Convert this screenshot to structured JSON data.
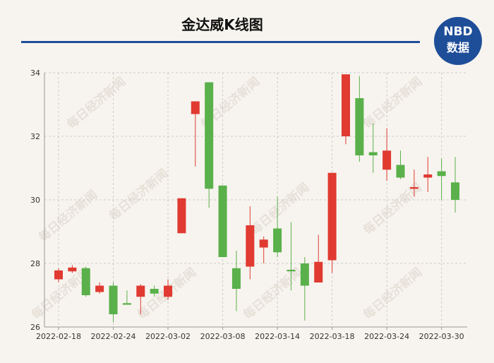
{
  "chart_data": {
    "type": "candlestick",
    "title": "金达威K线图",
    "logo": [
      "NBD",
      "数据"
    ],
    "watermark": "每日经济新闻",
    "categories": [
      "2022-02-18",
      null,
      null,
      null,
      "2022-02-24",
      null,
      null,
      null,
      "2022-03-02",
      null,
      null,
      null,
      "2022-03-08",
      null,
      null,
      null,
      "2022-03-14",
      null,
      null,
      null,
      "2022-03-18",
      null,
      null,
      null,
      "2022-03-24",
      null,
      null,
      null,
      "2022-03-30",
      null
    ],
    "open": [
      27.5,
      27.75,
      27.85,
      27.1,
      27.3,
      26.75,
      26.95,
      27.2,
      26.95,
      28.95,
      32.7,
      33.7,
      30.45,
      27.85,
      27.9,
      28.5,
      29.1,
      27.8,
      28.0,
      27.4,
      28.1,
      32.0,
      33.2,
      31.5,
      30.95,
      31.1,
      30.35,
      30.7,
      30.9,
      30.55
    ],
    "high": [
      27.85,
      27.95,
      27.9,
      27.4,
      27.4,
      27.15,
      27.35,
      27.3,
      27.5,
      30.05,
      33.1,
      33.7,
      30.45,
      28.4,
      29.8,
      28.85,
      30.1,
      29.3,
      28.2,
      28.9,
      30.85,
      33.95,
      33.9,
      32.4,
      32.25,
      31.55,
      30.95,
      31.35,
      31.3,
      31.35
    ],
    "low": [
      27.4,
      27.7,
      26.95,
      27.05,
      26.15,
      26.7,
      26.4,
      26.95,
      26.85,
      28.95,
      31.05,
      29.75,
      28.2,
      26.5,
      27.5,
      28.0,
      28.2,
      27.15,
      26.2,
      27.4,
      27.7,
      31.75,
      31.2,
      30.85,
      30.6,
      30.65,
      30.1,
      30.25,
      30.0,
      29.6
    ],
    "close": [
      27.78,
      27.87,
      27.0,
      27.3,
      26.4,
      26.7,
      27.3,
      27.05,
      27.3,
      30.05,
      33.1,
      30.35,
      28.2,
      27.2,
      29.2,
      28.75,
      28.35,
      27.75,
      27.3,
      28.05,
      30.85,
      33.95,
      31.4,
      31.4,
      31.55,
      30.7,
      30.4,
      30.8,
      30.75,
      30.0
    ],
    "up_color": "#e03a31",
    "down_color": "#5ab04a",
    "ylim": [
      26,
      34
    ],
    "yticks": [
      26,
      28,
      30,
      32,
      34
    ],
    "grid": true
  }
}
